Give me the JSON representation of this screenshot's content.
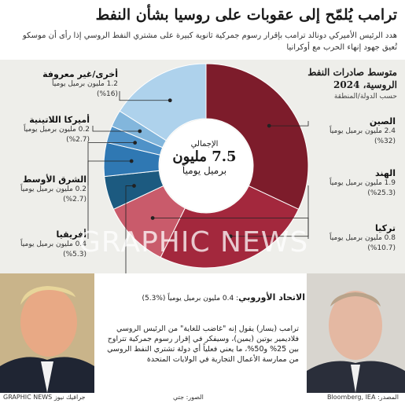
{
  "header": {
    "title": "ترامب يُلمّح إلى عقوبات على روسيا بشأن النفط",
    "subtitle": "هدد الرئيس الأميركي دونالد ترامب بإقرار رسوم جمركية ثانوية كبيرة على مشتري النفط الروسي إذا رأى أن موسكو تُعيق جهود إنهاء الحرب مع أوكرانيا"
  },
  "chart_data": {
    "type": "pie",
    "title": "متوسط صادرات النفط الروسية، 2024",
    "subtitle": "حسب الدولة/المنطقة",
    "center_label": "الإجمالي",
    "center_value": "7.5 مليون",
    "center_unit": "برميل يومياً",
    "unit": "مليون برميل يومياً",
    "slices": [
      {
        "name": "الصين",
        "value": 2.4,
        "value_text": "2.4 مليون برميل يومياً",
        "percent": 32,
        "percent_text": "(%32)",
        "color": "#7d1c2b"
      },
      {
        "name": "الهند",
        "value": 1.9,
        "value_text": "1.9 مليون برميل يومياً",
        "percent": 25.3,
        "percent_text": "(%25.3)",
        "color": "#a3283d"
      },
      {
        "name": "تركيا",
        "value": 0.8,
        "value_text": "0.8 مليون برميل يومياً",
        "percent": 10.7,
        "percent_text": "(%10.7)",
        "color": "#c95b6b"
      },
      {
        "name": "الاتحاد الأوروبي",
        "value": 0.4,
        "value_text": "0.4 مليون برميل يومياً",
        "percent": 5.3,
        "percent_text": "(%5.3)",
        "color": "#1c5a80"
      },
      {
        "name": "أفريقيا",
        "value": 0.4,
        "value_text": "0.4 مليون برميل يومياً",
        "percent": 5.3,
        "percent_text": "(%5.3)",
        "color": "#2f78b3"
      },
      {
        "name": "الشرق الأوسط",
        "value": 0.2,
        "value_text": "0.2 مليون برميل يومياً",
        "percent": 2.7,
        "percent_text": "(%2.7)",
        "color": "#4f92c8"
      },
      {
        "name": "أميركا اللاتينية",
        "value": 0.2,
        "value_text": "0.2 مليون برميل يومياً",
        "percent": 2.7,
        "percent_text": "(%2.7)",
        "color": "#82b6dc"
      },
      {
        "name": "أخرى/غير معروفة",
        "value": 1.2,
        "value_text": "1.2 مليون برميل يومياً",
        "percent": 16,
        "percent_text": "(%16)",
        "color": "#aed2ec"
      }
    ]
  },
  "caption": "ترامب (يسار) يقول إنه \"غاضب للغاية\" من الرئيس الروسي فلاديمير بوتين (يمين)، وسيفكر في إقرار رسوم جمركية تتراوح بين 25% و50%، ما يعني فعلياً أي دولة تشتري النفط الروسي من ممارسة الأعمال التجارية في الولايات المتحدة",
  "footer": {
    "source": "المصدر: Bloomberg, IEA",
    "photo": "الصور: جتي",
    "brand": "GRAPHIC NEWS جرافيك نيوز"
  },
  "watermark": "GRAPHIC NEWS",
  "colors": {
    "panel": "#eeeeea"
  }
}
